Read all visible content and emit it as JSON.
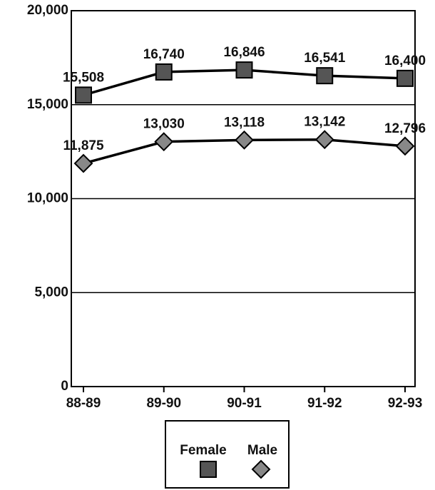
{
  "chart_data": {
    "type": "line",
    "categories": [
      "88-89",
      "89-90",
      "90-91",
      "91-92",
      "92-93"
    ],
    "series": [
      {
        "name": "Female",
        "color": "#000000",
        "marker": "square",
        "values": [
          15508,
          16740,
          16846,
          16541,
          16400
        ],
        "value_labels": [
          "15,508",
          "16,740",
          "16,846",
          "16,541",
          "16,400"
        ]
      },
      {
        "name": "Male",
        "color": "#000000",
        "marker": "diamond",
        "values": [
          11875,
          13030,
          13118,
          13142,
          12796
        ],
        "value_labels": [
          "11,875",
          "13,030",
          "13,118",
          "13,142",
          "12,796"
        ]
      }
    ],
    "ylim": [
      0,
      20000
    ],
    "yticks": [
      {
        "value": 0,
        "label": "0"
      },
      {
        "value": 5000,
        "label": "5,000"
      },
      {
        "value": 10000,
        "label": "10,000"
      },
      {
        "value": 15000,
        "label": "15,000"
      },
      {
        "value": 20000,
        "label": "20,000"
      }
    ],
    "grid": true
  }
}
